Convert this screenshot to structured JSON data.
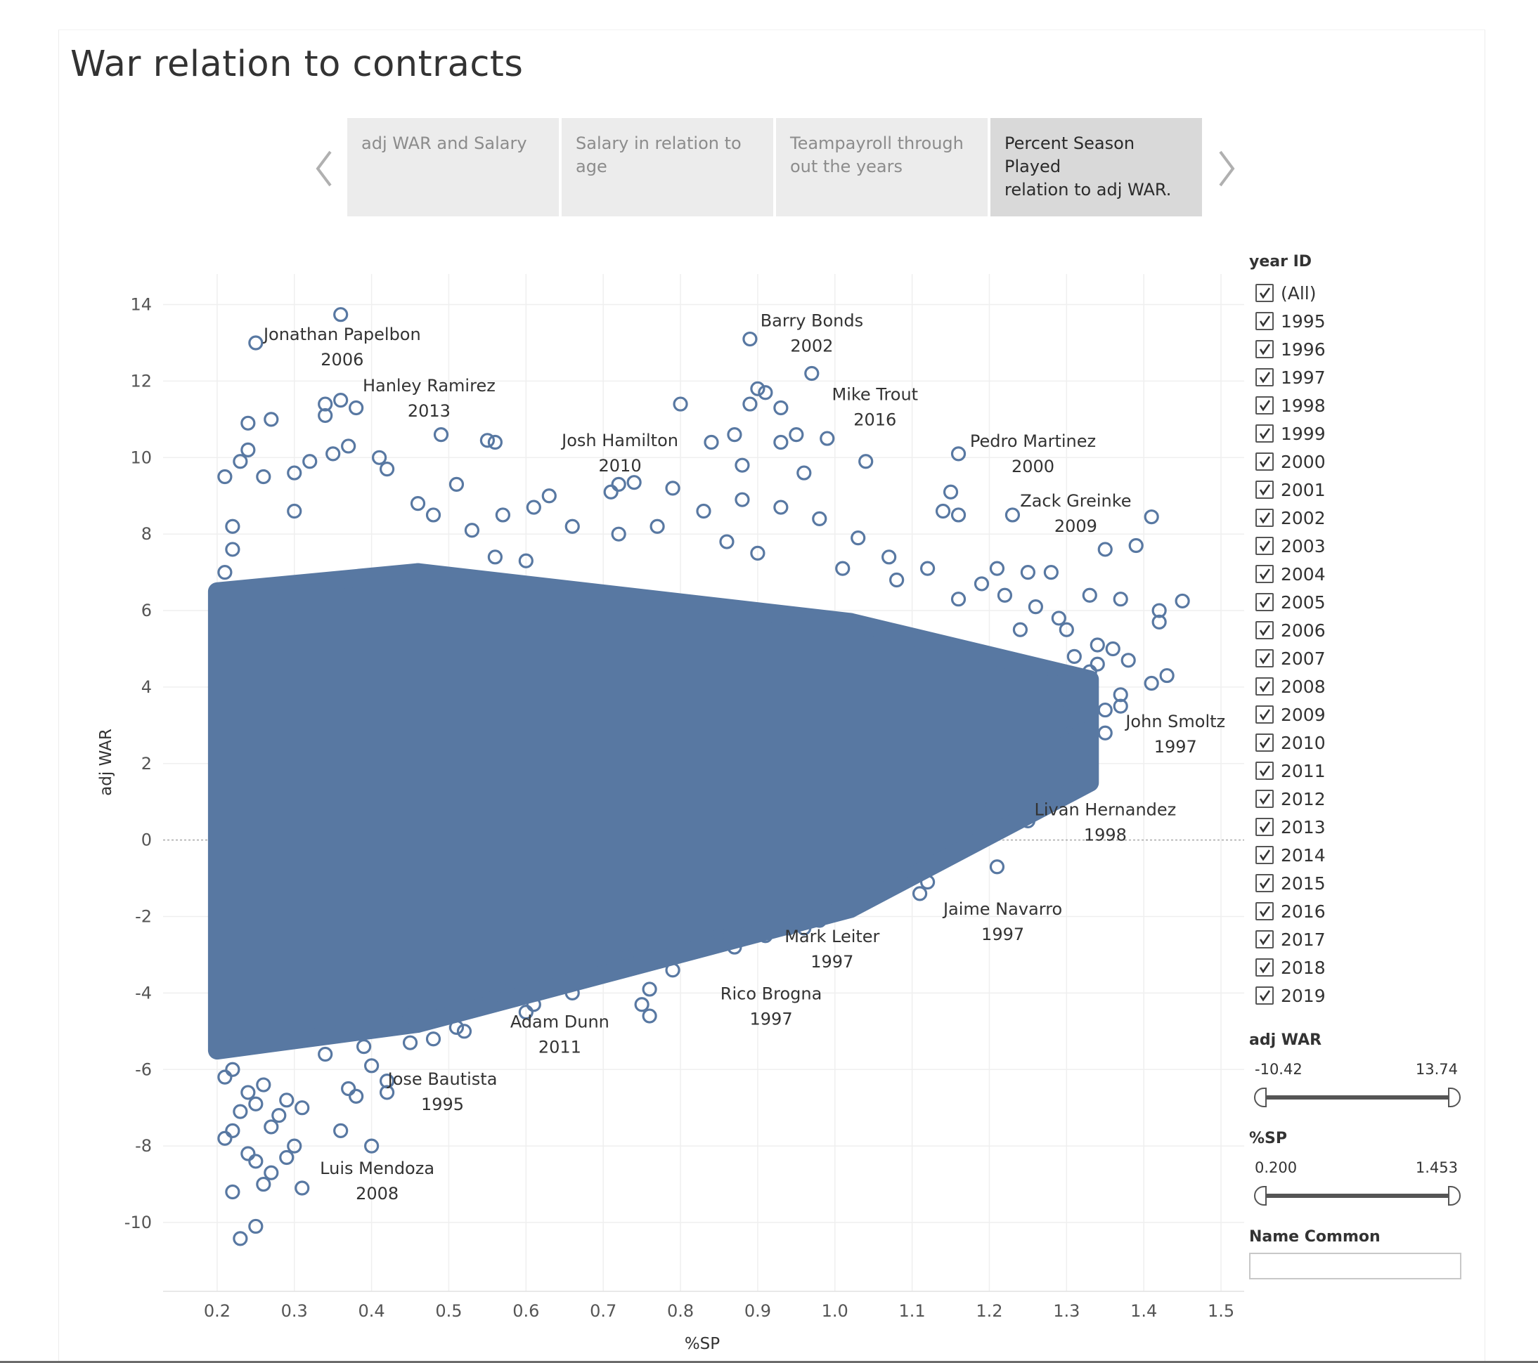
{
  "dashboard": {
    "title": "War relation to contracts"
  },
  "story_tabs": [
    {
      "label_lines": [
        "adj WAR and Salary"
      ],
      "active": false
    },
    {
      "label_lines": [
        "Salary in relation to",
        "age"
      ],
      "active": false
    },
    {
      "label_lines": [
        "Teampayroll through",
        "out the years"
      ],
      "active": false
    },
    {
      "label_lines": [
        "Percent Season Played",
        "relation to adj WAR."
      ],
      "active": true
    }
  ],
  "filters": {
    "year_title": "year ID",
    "year_items": [
      "(All)",
      "1995",
      "1996",
      "1997",
      "1998",
      "1999",
      "2000",
      "2001",
      "2002",
      "2003",
      "2004",
      "2005",
      "2006",
      "2007",
      "2008",
      "2009",
      "2010",
      "2011",
      "2012",
      "2013",
      "2014",
      "2015",
      "2016",
      "2017",
      "2018",
      "2019"
    ],
    "adj_war": {
      "title": "adj WAR",
      "min": "-10.42",
      "max": "13.74"
    },
    "sp": {
      "title": "%SP",
      "min": "0.200",
      "max": "1.453"
    },
    "name_common": {
      "title": "Name Common",
      "value": ""
    }
  },
  "colors": {
    "mark": "#5878a2",
    "grid": "#efefef",
    "zero_line": "#a8a8a8",
    "tab": "#ececec",
    "tab_active": "#d9d9d9"
  },
  "chart_data": {
    "type": "scatter",
    "title": "",
    "xlabel": "%SP",
    "ylabel": "adj WAR",
    "xlim": [
      0.13,
      1.53
    ],
    "ylim": [
      -11.8,
      14.8
    ],
    "xticks": [
      0.2,
      0.3,
      0.4,
      0.5,
      0.6,
      0.7,
      0.8,
      0.9,
      1.0,
      1.1,
      1.2,
      1.3,
      1.4,
      1.5
    ],
    "xtick_labels": [
      "0.2",
      "0.3",
      "0.4",
      "0.5",
      "0.6",
      "0.7",
      "0.8",
      "0.9",
      "1.0",
      "1.1",
      "1.2",
      "1.3",
      "1.4",
      "1.5"
    ],
    "yticks": [
      14,
      12,
      10,
      8,
      6,
      4,
      2,
      0,
      -2,
      -4,
      -6,
      -8,
      -10
    ],
    "ytick_labels": [
      "14",
      "12",
      "10",
      "8",
      "6",
      "4",
      "2",
      "0",
      "-2",
      "-4",
      "-6",
      "-8",
      "-10"
    ],
    "grid": true,
    "marker": "open circle",
    "mass_bands": [
      {
        "x": [
          0.2,
          0.46
        ],
        "y_low": [
          -5.5,
          -4.8
        ],
        "y_high": [
          6.5,
          7.0
        ]
      },
      {
        "x": [
          0.46,
          1.02
        ],
        "y_low": [
          -4.8,
          -1.8
        ],
        "y_high": [
          7.0,
          5.7
        ]
      },
      {
        "x": [
          1.02,
          1.33
        ],
        "y_low": [
          -1.8,
          1.5
        ],
        "y_high": [
          5.7,
          4.2
        ]
      }
    ],
    "points": [
      {
        "x": 0.36,
        "y": 13.74
      },
      {
        "x": 0.25,
        "y": 13.0
      },
      {
        "x": 0.89,
        "y": 13.1
      },
      {
        "x": 0.97,
        "y": 12.2
      },
      {
        "x": 0.9,
        "y": 11.8
      },
      {
        "x": 0.91,
        "y": 11.7
      },
      {
        "x": 0.89,
        "y": 11.4
      },
      {
        "x": 0.93,
        "y": 11.3
      },
      {
        "x": 0.8,
        "y": 11.4
      },
      {
        "x": 0.34,
        "y": 11.4
      },
      {
        "x": 0.36,
        "y": 11.5
      },
      {
        "x": 0.38,
        "y": 11.3
      },
      {
        "x": 0.34,
        "y": 11.1
      },
      {
        "x": 0.27,
        "y": 11.0
      },
      {
        "x": 0.24,
        "y": 10.9
      },
      {
        "x": 0.49,
        "y": 10.6
      },
      {
        "x": 0.55,
        "y": 10.45
      },
      {
        "x": 0.56,
        "y": 10.4
      },
      {
        "x": 0.84,
        "y": 10.4
      },
      {
        "x": 0.87,
        "y": 10.6
      },
      {
        "x": 0.95,
        "y": 10.6
      },
      {
        "x": 0.99,
        "y": 10.5
      },
      {
        "x": 1.16,
        "y": 10.1
      },
      {
        "x": 0.93,
        "y": 10.4
      },
      {
        "x": 0.79,
        "y": 9.2
      },
      {
        "x": 0.71,
        "y": 9.1
      },
      {
        "x": 0.72,
        "y": 9.3
      },
      {
        "x": 0.74,
        "y": 9.35
      },
      {
        "x": 0.88,
        "y": 9.8
      },
      {
        "x": 0.96,
        "y": 9.6
      },
      {
        "x": 1.04,
        "y": 9.9
      },
      {
        "x": 0.63,
        "y": 9.0
      },
      {
        "x": 1.15,
        "y": 9.1
      },
      {
        "x": 1.23,
        "y": 8.5
      },
      {
        "x": 1.41,
        "y": 8.45
      },
      {
        "x": 1.16,
        "y": 8.5
      },
      {
        "x": 1.14,
        "y": 8.6
      },
      {
        "x": 1.39,
        "y": 7.7
      },
      {
        "x": 1.35,
        "y": 7.6
      },
      {
        "x": 1.25,
        "y": 7.0
      },
      {
        "x": 1.21,
        "y": 7.1
      },
      {
        "x": 1.28,
        "y": 7.0
      },
      {
        "x": 1.33,
        "y": 6.4
      },
      {
        "x": 1.37,
        "y": 6.3
      },
      {
        "x": 1.45,
        "y": 6.25
      },
      {
        "x": 1.42,
        "y": 6.0
      },
      {
        "x": 1.42,
        "y": 5.7
      },
      {
        "x": 1.38,
        "y": 4.7
      },
      {
        "x": 1.36,
        "y": 5.0
      },
      {
        "x": 1.43,
        "y": 4.3
      },
      {
        "x": 1.41,
        "y": 4.1
      },
      {
        "x": 1.37,
        "y": 3.8
      },
      {
        "x": 1.37,
        "y": 3.5
      },
      {
        "x": 1.35,
        "y": 3.4
      },
      {
        "x": 1.31,
        "y": 3.4
      },
      {
        "x": 1.35,
        "y": 2.8
      },
      {
        "x": 1.32,
        "y": 2.3
      },
      {
        "x": 1.3,
        "y": 2.8
      },
      {
        "x": 1.27,
        "y": 1.5
      },
      {
        "x": 1.25,
        "y": 0.5
      },
      {
        "x": 1.2,
        "y": 0.8
      },
      {
        "x": 1.21,
        "y": -0.7
      },
      {
        "x": 1.12,
        "y": -1.1
      },
      {
        "x": 1.11,
        "y": -1.4
      },
      {
        "x": 1.04,
        "y": -1.6
      },
      {
        "x": 0.96,
        "y": -2.3
      },
      {
        "x": 0.98,
        "y": -2.1
      },
      {
        "x": 0.91,
        "y": -2.5
      },
      {
        "x": 0.87,
        "y": -2.8
      },
      {
        "x": 0.79,
        "y": -3.4
      },
      {
        "x": 0.76,
        "y": -3.9
      },
      {
        "x": 0.76,
        "y": -4.6
      },
      {
        "x": 0.75,
        "y": -4.3
      },
      {
        "x": 0.66,
        "y": -4.0
      },
      {
        "x": 0.65,
        "y": -3.4
      },
      {
        "x": 0.69,
        "y": -3.4
      },
      {
        "x": 0.58,
        "y": -3.8
      },
      {
        "x": 0.57,
        "y": -3.6
      },
      {
        "x": 0.61,
        "y": -4.3
      },
      {
        "x": 0.51,
        "y": -4.9
      },
      {
        "x": 0.52,
        "y": -5.0
      },
      {
        "x": 0.45,
        "y": -5.3
      },
      {
        "x": 0.45,
        "y": -4.6
      },
      {
        "x": 0.42,
        "y": -6.6
      },
      {
        "x": 0.42,
        "y": -6.3
      },
      {
        "x": 0.4,
        "y": -5.9
      },
      {
        "x": 0.37,
        "y": -6.5
      },
      {
        "x": 0.38,
        "y": -6.7
      },
      {
        "x": 0.4,
        "y": -8.0
      },
      {
        "x": 0.36,
        "y": -7.6
      },
      {
        "x": 0.3,
        "y": -8.0
      },
      {
        "x": 0.29,
        "y": -8.3
      },
      {
        "x": 0.31,
        "y": -9.1
      },
      {
        "x": 0.24,
        "y": -8.2
      },
      {
        "x": 0.25,
        "y": -8.4
      },
      {
        "x": 0.27,
        "y": -8.7
      },
      {
        "x": 0.26,
        "y": -9.0
      },
      {
        "x": 0.22,
        "y": -9.2
      },
      {
        "x": 0.23,
        "y": -10.42
      },
      {
        "x": 0.25,
        "y": -10.1
      },
      {
        "x": 0.27,
        "y": -7.5
      },
      {
        "x": 0.28,
        "y": -7.2
      },
      {
        "x": 0.21,
        "y": -7.8
      },
      {
        "x": 0.22,
        "y": -7.6
      },
      {
        "x": 0.23,
        "y": -7.1
      },
      {
        "x": 0.31,
        "y": -7.0
      },
      {
        "x": 0.29,
        "y": -6.8
      },
      {
        "x": 0.25,
        "y": -6.9
      },
      {
        "x": 0.21,
        "y": -6.2
      },
      {
        "x": 0.22,
        "y": -6.0
      },
      {
        "x": 0.24,
        "y": -6.6
      },
      {
        "x": 0.26,
        "y": -6.4
      },
      {
        "x": 0.34,
        "y": -5.6
      },
      {
        "x": 0.39,
        "y": -5.4
      },
      {
        "x": 0.48,
        "y": -5.2
      },
      {
        "x": 0.54,
        "y": -4.3
      },
      {
        "x": 0.56,
        "y": -4.1
      },
      {
        "x": 0.6,
        "y": -4.5
      },
      {
        "x": 0.73,
        "y": -3.0
      },
      {
        "x": 0.82,
        "y": -2.8
      },
      {
        "x": 0.85,
        "y": -2.5
      },
      {
        "x": 0.94,
        "y": -2.3
      },
      {
        "x": 1.01,
        "y": -1.8
      },
      {
        "x": 1.06,
        "y": -1.2
      },
      {
        "x": 1.09,
        "y": -0.8
      },
      {
        "x": 1.14,
        "y": -0.4
      },
      {
        "x": 1.18,
        "y": 0.1
      },
      {
        "x": 1.23,
        "y": 1.2
      },
      {
        "x": 1.29,
        "y": 1.8
      },
      {
        "x": 1.31,
        "y": 2.9
      },
      {
        "x": 1.33,
        "y": 3.2
      },
      {
        "x": 1.3,
        "y": 3.6
      },
      {
        "x": 1.28,
        "y": 4.2
      },
      {
        "x": 1.31,
        "y": 4.8
      },
      {
        "x": 1.34,
        "y": 5.1
      },
      {
        "x": 1.3,
        "y": 5.5
      },
      {
        "x": 1.26,
        "y": 6.1
      },
      {
        "x": 1.22,
        "y": 6.4
      },
      {
        "x": 1.19,
        "y": 6.7
      },
      {
        "x": 1.12,
        "y": 7.1
      },
      {
        "x": 1.07,
        "y": 7.4
      },
      {
        "x": 1.03,
        "y": 7.9
      },
      {
        "x": 0.98,
        "y": 8.4
      },
      {
        "x": 0.93,
        "y": 8.7
      },
      {
        "x": 0.88,
        "y": 8.9
      },
      {
        "x": 0.83,
        "y": 8.6
      },
      {
        "x": 0.77,
        "y": 8.2
      },
      {
        "x": 0.72,
        "y": 8.0
      },
      {
        "x": 0.66,
        "y": 8.2
      },
      {
        "x": 0.61,
        "y": 8.7
      },
      {
        "x": 0.57,
        "y": 8.5
      },
      {
        "x": 0.53,
        "y": 8.1
      },
      {
        "x": 0.48,
        "y": 8.5
      },
      {
        "x": 0.46,
        "y": 8.8
      },
      {
        "x": 0.42,
        "y": 9.7
      },
      {
        "x": 0.41,
        "y": 10.0
      },
      {
        "x": 0.37,
        "y": 10.3
      },
      {
        "x": 0.35,
        "y": 10.1
      },
      {
        "x": 0.32,
        "y": 9.9
      },
      {
        "x": 0.3,
        "y": 9.6
      },
      {
        "x": 0.26,
        "y": 9.5
      },
      {
        "x": 0.23,
        "y": 9.9
      },
      {
        "x": 0.21,
        "y": 9.5
      },
      {
        "x": 0.24,
        "y": 10.2
      },
      {
        "x": 0.22,
        "y": 8.2
      },
      {
        "x": 0.3,
        "y": 8.6
      },
      {
        "x": 0.21,
        "y": 7.0
      },
      {
        "x": 0.22,
        "y": 7.6
      },
      {
        "x": 0.51,
        "y": 9.3
      },
      {
        "x": 0.56,
        "y": 7.4
      },
      {
        "x": 0.6,
        "y": 7.3
      },
      {
        "x": 0.86,
        "y": 7.8
      },
      {
        "x": 0.9,
        "y": 7.5
      },
      {
        "x": 1.01,
        "y": 7.1
      },
      {
        "x": 1.08,
        "y": 6.8
      },
      {
        "x": 1.16,
        "y": 6.3
      },
      {
        "x": 1.24,
        "y": 5.5
      },
      {
        "x": 1.29,
        "y": 5.8
      },
      {
        "x": 1.33,
        "y": 4.4
      },
      {
        "x": 1.34,
        "y": 4.6
      }
    ],
    "annotations": [
      {
        "x": 0.25,
        "y": 13.0,
        "lines": [
          "Jonathan Papelbon",
          "2006"
        ]
      },
      {
        "x": 0.89,
        "y": 13.1,
        "lines": [
          "Barry Bonds",
          "2002"
        ]
      },
      {
        "x": 0.55,
        "y": 10.45,
        "lines": [
          "Hanley Ramirez",
          "2013"
        ]
      },
      {
        "x": 0.97,
        "y": 12.2,
        "lines": [
          "Mike Trout",
          "2016"
        ]
      },
      {
        "x": 0.79,
        "y": 9.2,
        "lines": [
          "Josh Hamilton",
          "2010"
        ]
      },
      {
        "x": 1.16,
        "y": 10.1,
        "lines": [
          "Pedro Martinez",
          "2000"
        ]
      },
      {
        "x": 1.23,
        "y": 8.5,
        "lines": [
          "Zack Greinke",
          "2009"
        ]
      },
      {
        "x": 1.35,
        "y": 2.8,
        "lines": [
          "John Smoltz",
          "1997"
        ]
      },
      {
        "x": 1.25,
        "y": 0.5,
        "lines": [
          "Livan Hernandez",
          "1998"
        ]
      },
      {
        "x": 1.11,
        "y": -1.4,
        "lines": [
          "Jaime Navarro",
          "1997"
        ]
      },
      {
        "x": 0.96,
        "y": -2.3,
        "lines": [
          "Mark Leiter",
          "1997"
        ]
      },
      {
        "x": 0.79,
        "y": -3.4,
        "lines": [
          "Rico Brogna",
          "1997"
        ]
      },
      {
        "x": 0.58,
        "y": -3.8,
        "lines": [
          "Adam Dunn",
          "2011"
        ]
      },
      {
        "x": 0.45,
        "y": -5.3,
        "lines": [
          "Jose Bautista",
          "1995"
        ]
      },
      {
        "x": 0.4,
        "y": -8.0,
        "lines": [
          "Luis Mendoza",
          "2008"
        ]
      }
    ]
  }
}
